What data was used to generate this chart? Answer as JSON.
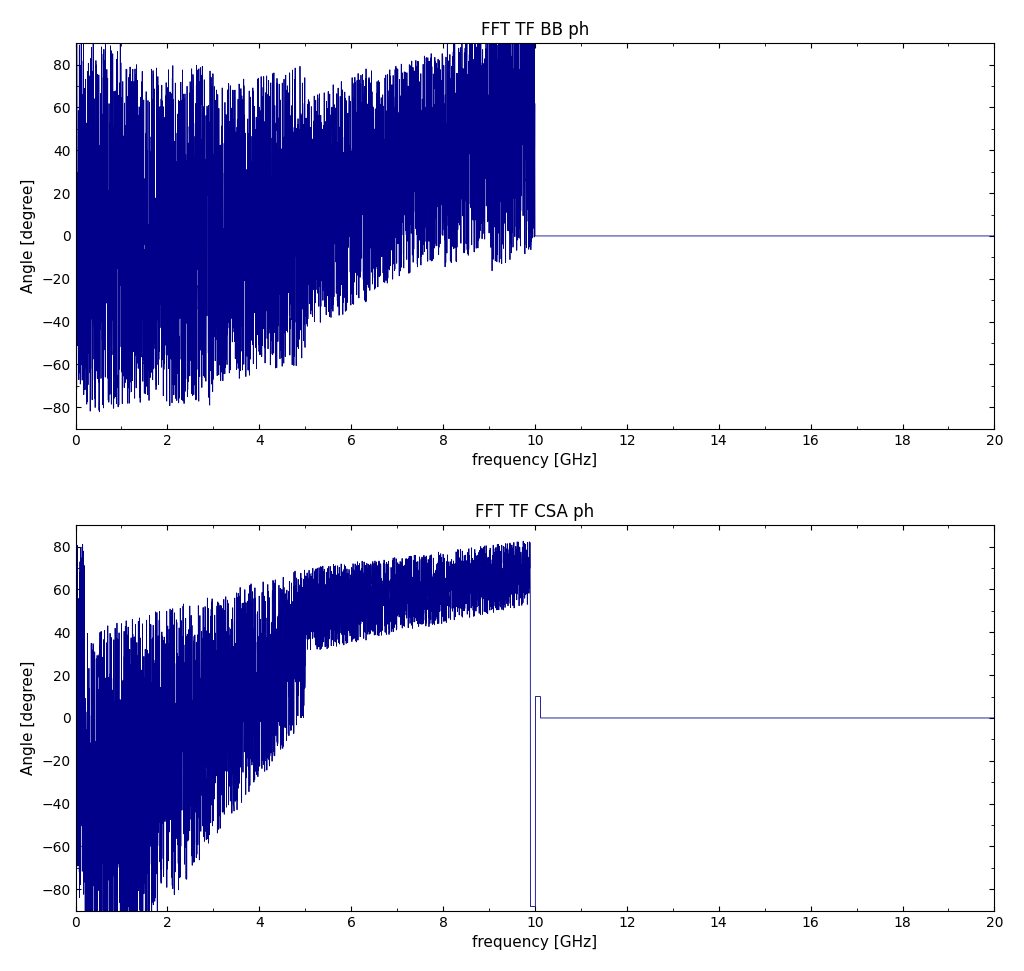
{
  "title1": "FFT TF BB ph",
  "title2": "FFT TF CSA ph",
  "xlabel": "frequency [GHz]",
  "ylabel": "Angle [degree]",
  "xlim": [
    0,
    20
  ],
  "ylim": [
    -90,
    90
  ],
  "xticks": [
    0,
    2,
    4,
    6,
    8,
    10,
    12,
    14,
    16,
    18,
    20
  ],
  "yticks": [
    -80,
    -60,
    -40,
    -20,
    0,
    20,
    40,
    60,
    80
  ],
  "line_color": "#00008B",
  "bg_color": "#ffffff",
  "fig_bg_color": "#ffffff",
  "bb_cutoff": 10.0,
  "csa_flat_start": 10.0
}
